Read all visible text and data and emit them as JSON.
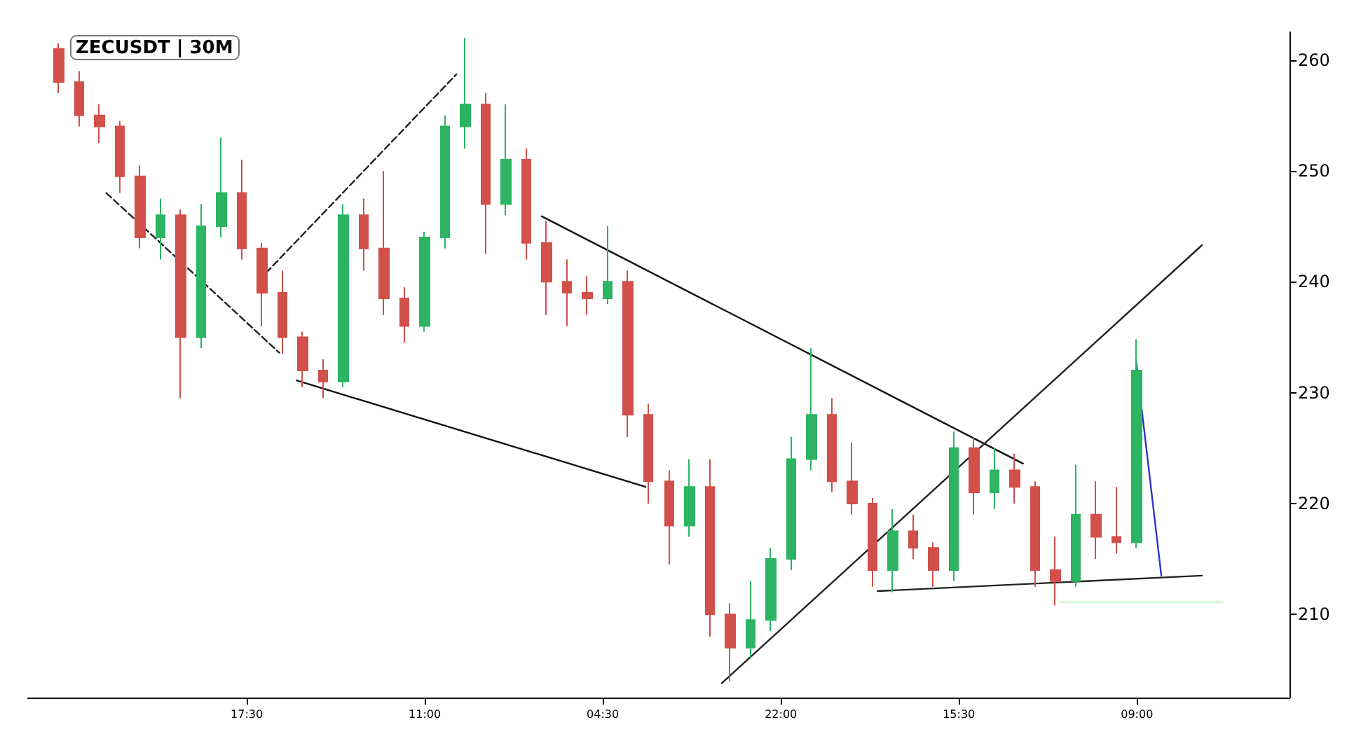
{
  "chart_data": {
    "type": "candlestick",
    "title": "ZECUSDT | 30M",
    "x": [
      "--01-01T23:00",
      "--01-02T01:00",
      "--01-02T03:00",
      "--01-02T05:00",
      "--01-02T07:00",
      "--01-02T09:00",
      "--01-02T11:00",
      "--01-02T13:00",
      "--01-02T15:00",
      "--01-02T17:00",
      "--01-02T19:00",
      "--01-02T21:00",
      "--01-02T23:00",
      "--01-03T01:00",
      "--01-03T03:00",
      "--01-03T05:00",
      "--01-03T07:00",
      "--01-03T09:00",
      "--01-03T11:00",
      "--01-03T13:00",
      "--01-03T15:00",
      "--01-03T17:00",
      "--01-03T19:00",
      "--01-03T21:00",
      "--01-03T23:00",
      "--01-04T01:00",
      "--01-04T03:00",
      "--01-04T05:00",
      "--01-04T07:00",
      "--01-04T09:00",
      "--01-04T11:00",
      "--01-04T13:00",
      "--01-04T15:00",
      "--01-04T17:00",
      "--01-04T19:00",
      "--01-04T21:00",
      "--01-04T23:00",
      "--01-05T01:00",
      "--01-05T03:00",
      "--01-05T05:00",
      "--01-05T07:00",
      "--01-05T09:00",
      "--01-05T11:00",
      "--01-05T13:00",
      "--01-05T15:00",
      "--01-05T17:00",
      "--01-05T19:00",
      "--01-05T21:00",
      "--01-05T23:00",
      "--01-06T01:00",
      "--01-06T03:00",
      "--01-06T05:00",
      "--01-06T07:00",
      "--01-06T09:00"
    ],
    "ohlc": [
      [
        261,
        261.5,
        257,
        258
      ],
      [
        258,
        259,
        254,
        255
      ],
      [
        255,
        256,
        252.5,
        254
      ],
      [
        254,
        254.5,
        248,
        249.5
      ],
      [
        249.5,
        250.5,
        243,
        244
      ],
      [
        244,
        247.5,
        242,
        246
      ],
      [
        246,
        246.5,
        229.5,
        235
      ],
      [
        235,
        247,
        234,
        245
      ],
      [
        245,
        253,
        244,
        248
      ],
      [
        248,
        251,
        242,
        243
      ],
      [
        243,
        243.5,
        236,
        239
      ],
      [
        239,
        241,
        233.5,
        235
      ],
      [
        235,
        235.5,
        230.5,
        232
      ],
      [
        232,
        233,
        229.5,
        231
      ],
      [
        231,
        247,
        230.5,
        246
      ],
      [
        246,
        247.5,
        241,
        243
      ],
      [
        243,
        250,
        237,
        238.5
      ],
      [
        238.5,
        239.5,
        234.5,
        236
      ],
      [
        236,
        244.5,
        235.5,
        244
      ],
      [
        244,
        255,
        243,
        254
      ],
      [
        254,
        262,
        252,
        256
      ],
      [
        256,
        257,
        242.5,
        247
      ],
      [
        247,
        256,
        246,
        251
      ],
      [
        251,
        252,
        242,
        243.5
      ],
      [
        243.5,
        245.5,
        237,
        240
      ],
      [
        240,
        242,
        236,
        239
      ],
      [
        239,
        240.5,
        237,
        238.5
      ],
      [
        238.5,
        245,
        238,
        240
      ],
      [
        240,
        241,
        226,
        228
      ],
      [
        228,
        229,
        220,
        222
      ],
      [
        222,
        223,
        214.5,
        218
      ],
      [
        218,
        224,
        217,
        221.5
      ],
      [
        221.5,
        224,
        208,
        210
      ],
      [
        210,
        211,
        204,
        207
      ],
      [
        207,
        213,
        206,
        209.5
      ],
      [
        209.5,
        216,
        208.5,
        215
      ],
      [
        215,
        226,
        214,
        224
      ],
      [
        224,
        234,
        223,
        228
      ],
      [
        228,
        229.5,
        221,
        222
      ],
      [
        222,
        225.5,
        219,
        220
      ],
      [
        220,
        220.5,
        212.5,
        214
      ],
      [
        214,
        219.5,
        212,
        217.5
      ],
      [
        217.5,
        219,
        215,
        216
      ],
      [
        216,
        216.5,
        212.5,
        214
      ],
      [
        214,
        226.5,
        213,
        225
      ],
      [
        225,
        226,
        219,
        221
      ],
      [
        221,
        225,
        219.5,
        223
      ],
      [
        223,
        224.5,
        220,
        221.5
      ],
      [
        221.5,
        222,
        212.5,
        214
      ],
      [
        214,
        217,
        210.8,
        213
      ],
      [
        213,
        223.5,
        212.5,
        219
      ],
      [
        219,
        222,
        215,
        217
      ],
      [
        217,
        221.5,
        215.5,
        216.5
      ],
      [
        216.5,
        234.8,
        216,
        232
      ]
    ],
    "colors": [
      "#d2504a",
      "#d2504a",
      "#d2504a",
      "#d2504a",
      "#d2504a",
      "#2cb463",
      "#d2504a",
      "#2cb463",
      "#2cb463",
      "#d2504a",
      "#d2504a",
      "#d2504a",
      "#d2504a",
      "#d2504a",
      "#2cb463",
      "#d2504a",
      "#d2504a",
      "#d2504a",
      "#2cb463",
      "#2cb463",
      "#2cb463",
      "#d2504a",
      "#2cb463",
      "#d2504a",
      "#d2504a",
      "#d2504a",
      "#d2504a",
      "#2cb463",
      "#d2504a",
      "#d2504a",
      "#d2504a",
      "#2cb463",
      "#d2504a",
      "#d2504a",
      "#2cb463",
      "#2cb463",
      "#2cb463",
      "#2cb463",
      "#d2504a",
      "#d2504a",
      "#d2504a",
      "#2cb463",
      "#d2504a",
      "#d2504a",
      "#2cb463",
      "#d2504a",
      "#2cb463",
      "#d2504a",
      "#d2504a",
      "#d2504a",
      "#2cb463",
      "#d2504a",
      "#d2504a",
      "#2cb463"
    ],
    "series": [
      {
        "type": "line",
        "color": "#222222",
        "line_style": "dashed",
        "x": [
          "--01-02T03:42",
          "--01-02T20:42"
        ],
        "values": [
          248.0,
          233.6
        ]
      },
      {
        "type": "line",
        "color": "#222222",
        "line_style": "dashed",
        "x": [
          "--01-02T19:24",
          "--01-03T14:06"
        ],
        "values": [
          240.8,
          258.7
        ]
      },
      {
        "type": "line",
        "color": "#111111",
        "line_style": "solid",
        "x": [
          "--01-02T22:24",
          "--01-04T08:42"
        ],
        "values": [
          231.1,
          221.5
        ]
      },
      {
        "type": "line",
        "color": "#111111",
        "line_style": "solid",
        "x": [
          "--01-03T22:30",
          "--01-05T21:48"
        ],
        "values": [
          245.9,
          223.6
        ]
      },
      {
        "type": "line",
        "color": "#222222",
        "line_style": "solid",
        "x": [
          "--01-04T16:12",
          "--01-06T15:24"
        ],
        "values": [
          203.8,
          243.3
        ]
      },
      {
        "type": "line",
        "color": "#222222",
        "line_style": "solid",
        "x": [
          "--01-05T07:30",
          "--01-06T15:24"
        ],
        "values": [
          212.1,
          213.5
        ]
      },
      {
        "type": "line",
        "color": "#3333cc",
        "line_style": "solid",
        "x": [
          "--01-06T08:54",
          "--01-06T11:24"
        ],
        "values": [
          233.0,
          213.5
        ]
      },
      {
        "type": "line",
        "color": "#ccf5cc",
        "line_style": "solid",
        "x": [
          "--01-06T01:24",
          "--01-06T17:24"
        ],
        "values": [
          211.1,
          211.1
        ]
      }
    ],
    "xlim": [
      "--01-01T20:00",
      "--01-07T00:00"
    ],
    "xticks": [
      {
        "value": "--01-02T17:30",
        "label": "17:30"
      },
      {
        "value": "--01-03T11:00",
        "label": "11:00"
      },
      {
        "value": "--01-04T04:30",
        "label": "04:30"
      },
      {
        "value": "--01-04T22:00",
        "label": "22:00"
      },
      {
        "value": "--01-05T15:30",
        "label": "15:30"
      },
      {
        "value": "--01-06T09:00",
        "label": "09:00"
      }
    ],
    "ylim": [
      202.5,
      262.5
    ],
    "yticks": [
      210,
      220,
      230,
      240,
      250,
      260
    ],
    "grid": false,
    "marker": "none"
  }
}
